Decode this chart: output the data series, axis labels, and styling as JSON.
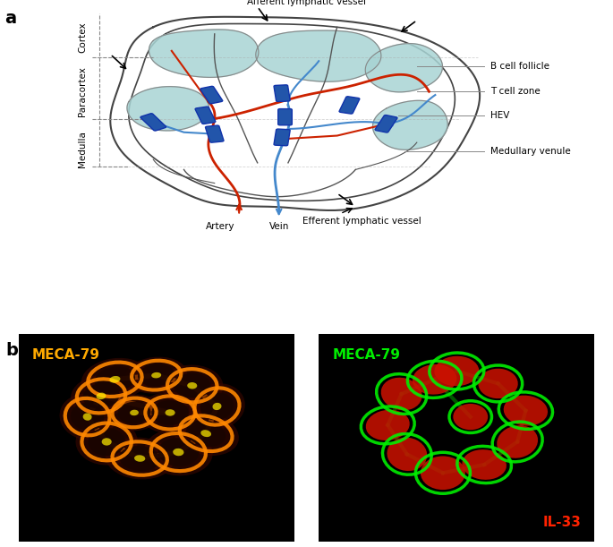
{
  "panel_a_label": "a",
  "panel_b_label": "b",
  "right_labels": [
    "B cell follicle",
    "T cell zone",
    "HEV",
    "Medullary venule"
  ],
  "left_labels": [
    "Cortex",
    "Paracortex",
    "Medulla"
  ],
  "bottom_labels": [
    "Artery",
    "Vein",
    "Efferent lymphatic vessel"
  ],
  "top_label": "Afferent lymphatic vessel",
  "artery_color": "#cc2200",
  "vein_color": "#4488cc",
  "hev_color": "#2255aa",
  "medullary_venule_color": "#555555",
  "follicle_fill": "#a8d4d4",
  "node_outline": "#444444",
  "label1_color": "#ffaa00",
  "label2_color": "#00ff00",
  "label3_color": "#ff2200",
  "meca79_left": "MECA-79",
  "meca79_right": "MECA-79",
  "il33_label": "IL-33"
}
